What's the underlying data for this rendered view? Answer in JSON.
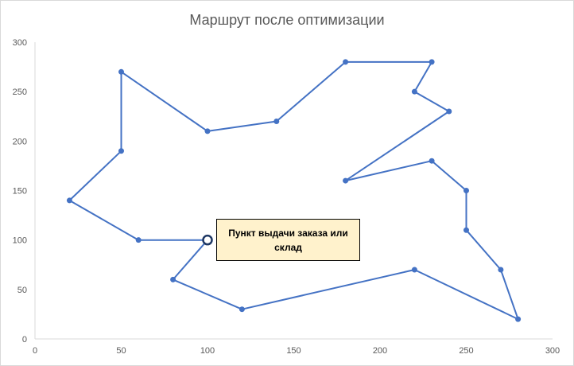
{
  "chart_data": {
    "type": "line",
    "title": "Маршрут после оптимизации",
    "xlabel": "",
    "ylabel": "",
    "xlim": [
      0,
      300
    ],
    "ylim": [
      0,
      300
    ],
    "xticks": [
      0,
      50,
      100,
      150,
      200,
      250,
      300
    ],
    "yticks": [
      0,
      50,
      100,
      150,
      200,
      250,
      300
    ],
    "grid": false,
    "series": [
      {
        "color": "#4472c4",
        "points": [
          [
            100,
            100
          ],
          [
            60,
            100
          ],
          [
            20,
            140
          ],
          [
            50,
            190
          ],
          [
            50,
            270
          ],
          [
            100,
            210
          ],
          [
            140,
            220
          ],
          [
            180,
            280
          ],
          [
            230,
            280
          ],
          [
            220,
            250
          ],
          [
            240,
            230
          ],
          [
            180,
            160
          ],
          [
            230,
            180
          ],
          [
            250,
            150
          ],
          [
            250,
            110
          ],
          [
            270,
            70
          ],
          [
            280,
            20
          ],
          [
            220,
            70
          ],
          [
            120,
            30
          ],
          [
            80,
            60
          ],
          [
            100,
            100
          ]
        ]
      }
    ],
    "annotations": [
      {
        "text": "Пункт выдачи заказа или склад",
        "x": 100,
        "y": 100
      }
    ]
  }
}
